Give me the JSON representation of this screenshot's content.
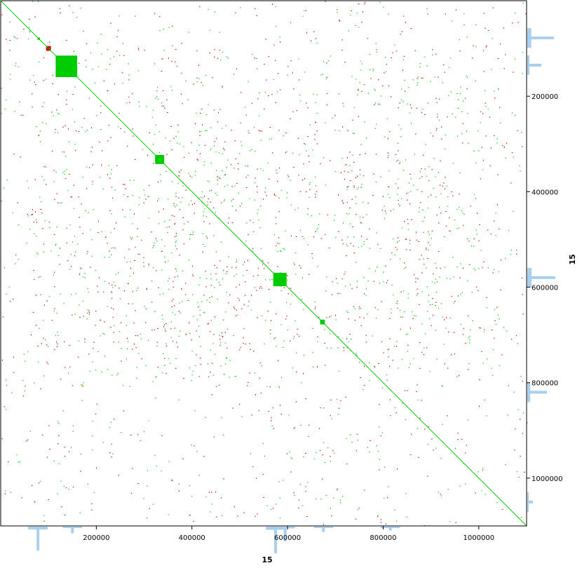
{
  "chart_data": {
    "type": "scatter",
    "title": "",
    "xlabel": "15",
    "ylabel": "15",
    "xlim": [
      0,
      1100000
    ],
    "ylim": [
      0,
      1100000
    ],
    "y_inverted": true,
    "x_ticks": [
      200000,
      400000,
      600000,
      800000,
      1000000
    ],
    "x_tick_labels": [
      "200000",
      "400000",
      "600000",
      "800000",
      "1000000"
    ],
    "y_ticks": [
      200000,
      400000,
      600000,
      800000,
      1000000
    ],
    "y_tick_labels": [
      "200000",
      "400000",
      "600000",
      "800000",
      "1000000"
    ],
    "grid": false,
    "legend": "none",
    "colors": {
      "forward": "#00cc00",
      "reverse": "#cc0000",
      "coverage": "#a8d0ee",
      "frame": "#000000"
    },
    "diagonal": {
      "from": 0,
      "to": 1100000
    },
    "blocks": [
      {
        "x0": 115000,
        "x1": 160000,
        "y0": 115000,
        "y1": 160000,
        "color": "forward"
      },
      {
        "x0": 570000,
        "x1": 598000,
        "y0": 570000,
        "y1": 598000,
        "color": "forward"
      },
      {
        "x0": 323000,
        "x1": 342000,
        "y0": 323000,
        "y1": 342000,
        "color": "forward"
      },
      {
        "x0": 668000,
        "x1": 678000,
        "y0": 668000,
        "y1": 678000,
        "color": "forward"
      },
      {
        "x0": 95000,
        "x1": 105000,
        "y0": 95000,
        "y1": 105000,
        "color": "reverse"
      },
      {
        "x0": 77000,
        "x1": 82000,
        "y0": 77000,
        "y1": 82000,
        "color": "forward"
      }
    ],
    "x_coverage_peaks": [
      {
        "position": 78000,
        "height": 0.9
      },
      {
        "position": 150000,
        "height": 0.25
      },
      {
        "position": 575000,
        "height": 1.0
      },
      {
        "position": 595000,
        "height": 0.55
      },
      {
        "position": 675000,
        "height": 0.2
      },
      {
        "position": 815000,
        "height": 0.15
      }
    ],
    "y_coverage_peaks": [
      {
        "position": 78000,
        "height": 0.95
      },
      {
        "position": 135000,
        "height": 0.5
      },
      {
        "position": 580000,
        "height": 1.0
      },
      {
        "position": 820000,
        "height": 0.7
      },
      {
        "position": 1050000,
        "height": 0.2
      }
    ]
  }
}
